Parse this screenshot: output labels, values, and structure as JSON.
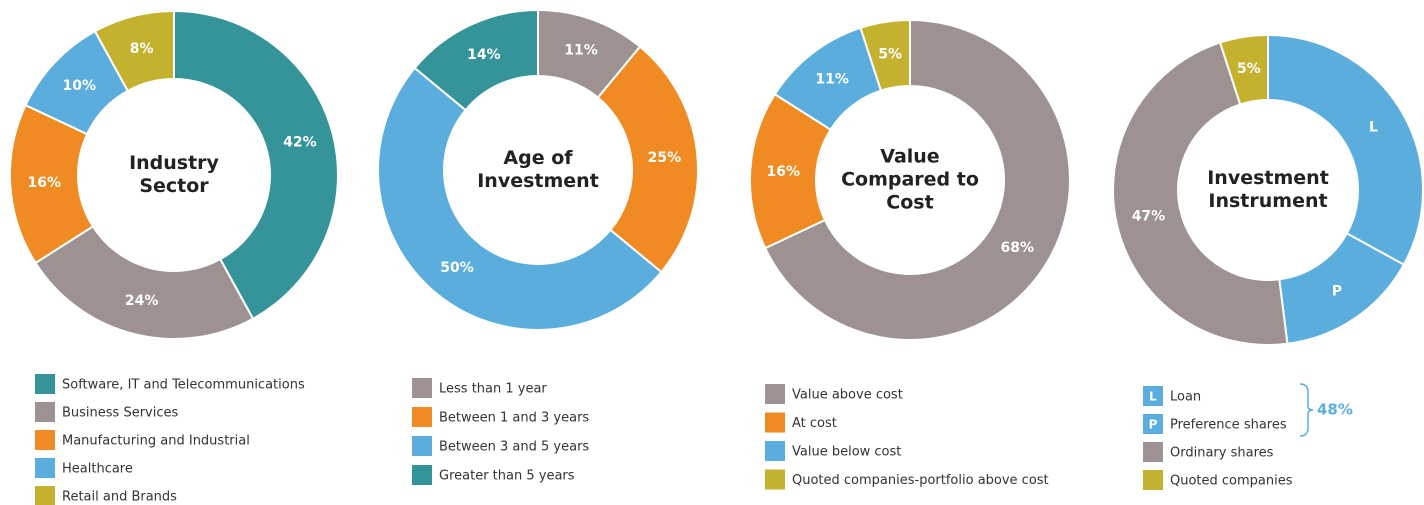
{
  "chart_data": [
    {
      "type": "pie",
      "donut": true,
      "title": "Industry Sector",
      "categories": [
        "Software, IT and Telecommunications",
        "Business Services",
        "Manufacturing and Industrial",
        "Healthcare",
        "Retail and Brands"
      ],
      "values": [
        42,
        24,
        16,
        10,
        8
      ],
      "value_labels": [
        "42%",
        "24%",
        "16%",
        "10%",
        "8%"
      ],
      "colors": [
        "#35939a",
        "#9e9191",
        "#ef8b22",
        "#5badde",
        "#c4b12d"
      ]
    },
    {
      "type": "pie",
      "donut": true,
      "title": "Age of Investment",
      "categories": [
        "Less than 1 year",
        "Between 1 and 3 years",
        "Between 3 and 5 years",
        "Greater than 5 years"
      ],
      "values": [
        11,
        25,
        50,
        14
      ],
      "value_labels": [
        "11%",
        "25%",
        "50%",
        "14%"
      ],
      "colors": [
        "#9e9191",
        "#ef8b22",
        "#5badde",
        "#35939a"
      ]
    },
    {
      "type": "pie",
      "donut": true,
      "title": "Value Compared to Cost",
      "categories": [
        "Value above cost",
        "At cost",
        "Value below cost",
        "Quoted companies-portfolio above cost"
      ],
      "values": [
        68,
        16,
        11,
        5
      ],
      "value_labels": [
        "68%",
        "16%",
        "11%",
        "5%"
      ],
      "colors": [
        "#9e9191",
        "#ef8b22",
        "#5badde",
        "#c4b12d"
      ]
    },
    {
      "type": "pie",
      "donut": true,
      "title": "Investment Instrument",
      "categories": [
        "Loan",
        "Preference shares",
        "Ordinary shares",
        "Quoted companies"
      ],
      "values": [
        33,
        15,
        47,
        5
      ],
      "value_labels": [
        "L",
        "P",
        "47%",
        "5%"
      ],
      "markers": [
        "L",
        "P",
        null,
        null
      ],
      "bracket": {
        "value": 48,
        "label": "48%",
        "series": [
          0,
          1
        ]
      },
      "colors": [
        "#5badde",
        "#5badde",
        "#9e9191",
        "#c4b12d"
      ]
    }
  ]
}
